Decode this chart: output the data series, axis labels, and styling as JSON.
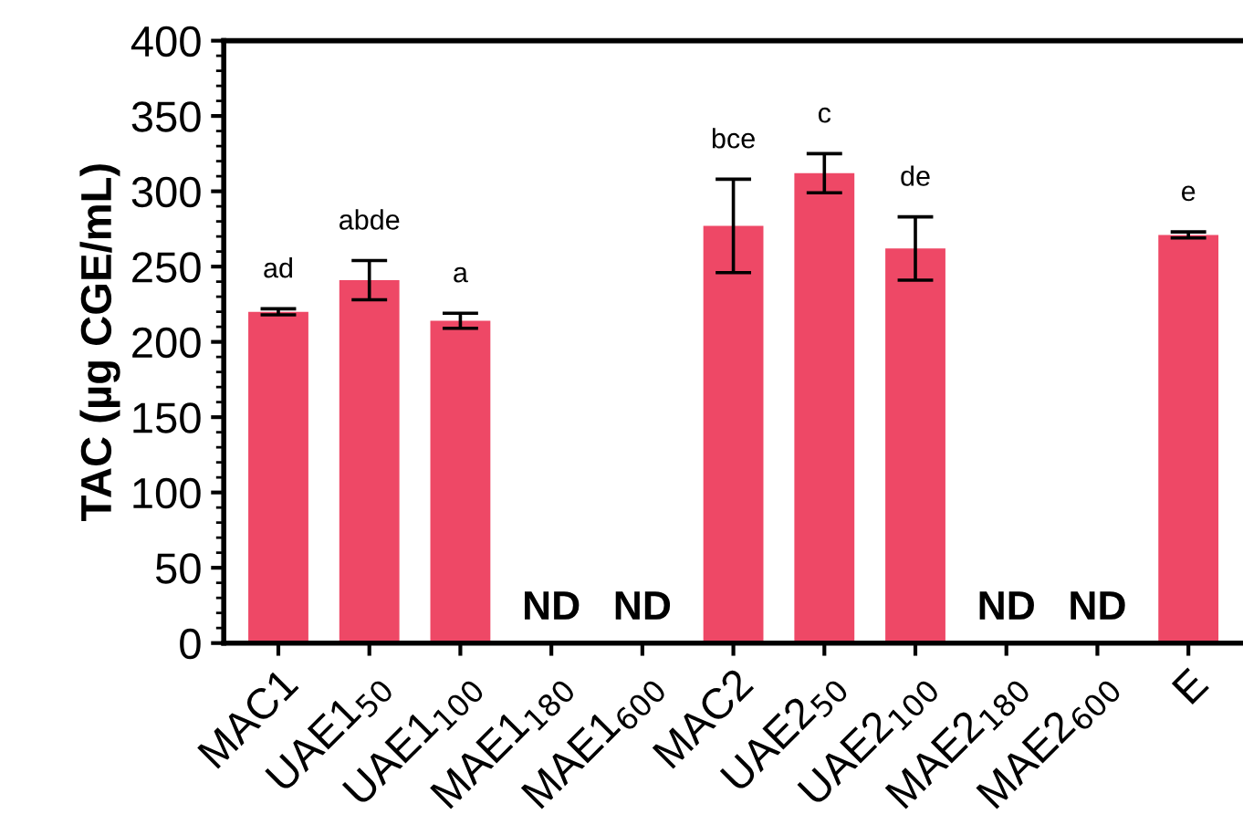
{
  "chart_data": {
    "type": "bar",
    "ylabel": "TAC (µg CGE/mL)",
    "categories": [
      "MAC1",
      "UAE1$_{50}$",
      "UAE1$_{100}$",
      "MAE1$_{180}$",
      "MAE1$_{600}$",
      "MAC2",
      "UAE2$_{50}$",
      "UAE2$_{100}$",
      "MAE2$_{180}$",
      "MAE2$_{600}$",
      "E"
    ],
    "values": [
      220,
      241,
      214,
      null,
      null,
      277,
      312,
      262,
      null,
      null,
      271
    ],
    "errors": [
      2,
      13,
      5,
      null,
      null,
      31,
      13,
      21,
      null,
      null,
      2
    ],
    "color": "#ee4866",
    "ylim": [
      0,
      400
    ],
    "yticks": [
      0,
      50,
      100,
      150,
      200,
      250,
      300,
      350,
      400
    ],
    "grid": false,
    "value_labels": [
      "ad",
      "abde",
      "a",
      "ND",
      "ND",
      "bce",
      "c",
      "de",
      "ND",
      "ND",
      "e"
    ]
  }
}
